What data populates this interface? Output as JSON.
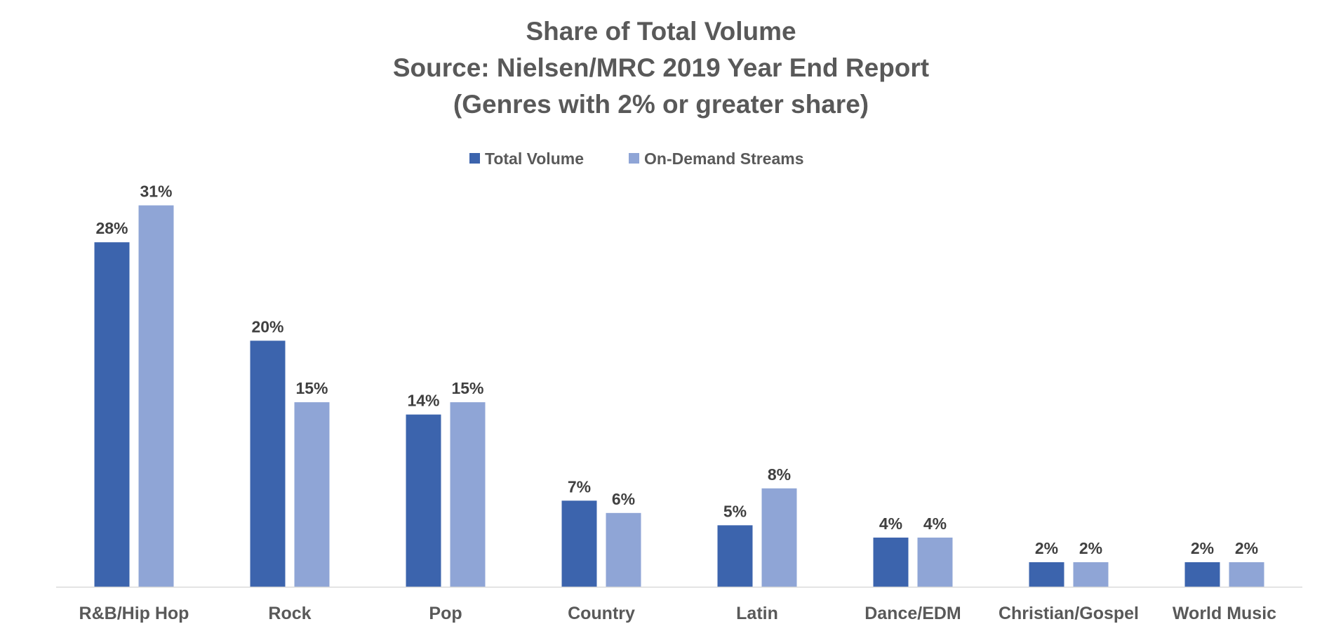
{
  "chart_data": {
    "type": "bar",
    "title": "Share of Total Volume",
    "subtitle": "Source: Nielsen/MRC 2019 Year End Report",
    "subtitle2": "(Genres with 2% or greater share)",
    "categories": [
      "R&B/Hip Hop",
      "Rock",
      "Pop",
      "Country",
      "Latin",
      "Dance/EDM",
      "Christian/Gospel",
      "World Music"
    ],
    "series": [
      {
        "name": "Total Volume",
        "values": [
          28,
          20,
          14,
          7,
          5,
          4,
          2,
          2
        ],
        "color": "#3C64AD"
      },
      {
        "name": "On-Demand Streams",
        "values": [
          31,
          15,
          15,
          6,
          8,
          4,
          2,
          2
        ],
        "color": "#8FA5D6"
      }
    ],
    "value_suffix": "%",
    "ylim": [
      0,
      33
    ],
    "legend_position": "top-center",
    "grid": false,
    "axis_color": "#D9D9D9"
  }
}
